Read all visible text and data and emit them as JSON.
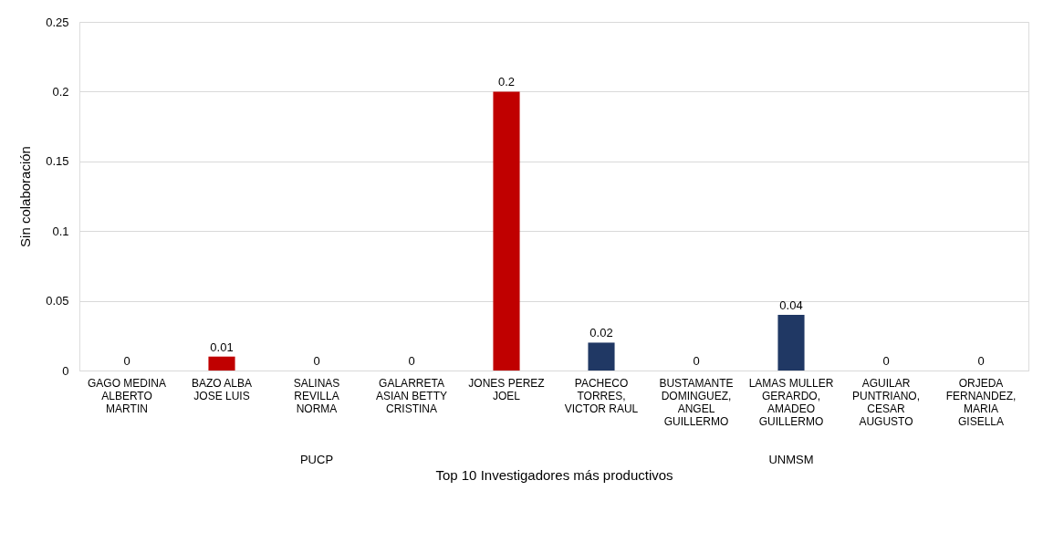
{
  "chart_data": {
    "type": "bar",
    "xlabel": "Top 10 Investigadores más productivos",
    "ylabel": "Sin colaboración",
    "categories": [
      "GAGO MEDINA ALBERTO MARTIN",
      "BAZO ALBA JOSE LUIS",
      "SALINAS REVILLA NORMA",
      "GALARRETA ASIAN BETTY CRISTINA",
      "JONES PEREZ JOEL",
      "PACHECO TORRES, VICTOR RAUL",
      "BUSTAMANTE DOMINGUEZ, ANGEL GUILLERMO",
      "LAMAS MULLER GERARDO, AMADEO GUILLERMO",
      "AGUILAR PUNTRIANO, CESAR AUGUSTO",
      "ORJEDA FERNANDEZ, MARIA GISELLA"
    ],
    "series": [
      {
        "color": "#c00000",
        "values": [
          0,
          0.01,
          0,
          0,
          0.2,
          null,
          null,
          null,
          null,
          null
        ]
      },
      {
        "color": "#203864",
        "values": [
          null,
          null,
          null,
          null,
          null,
          0.02,
          0,
          0.04,
          0,
          0
        ]
      }
    ],
    "annotations": [
      "PUCP",
      "UNMSM"
    ],
    "ylim": [
      0,
      0.25
    ],
    "yticks": [
      0,
      0.05,
      0.1,
      0.15,
      0.2,
      0.25
    ],
    "grid": "y",
    "data_labels": true,
    "legend": false
  }
}
